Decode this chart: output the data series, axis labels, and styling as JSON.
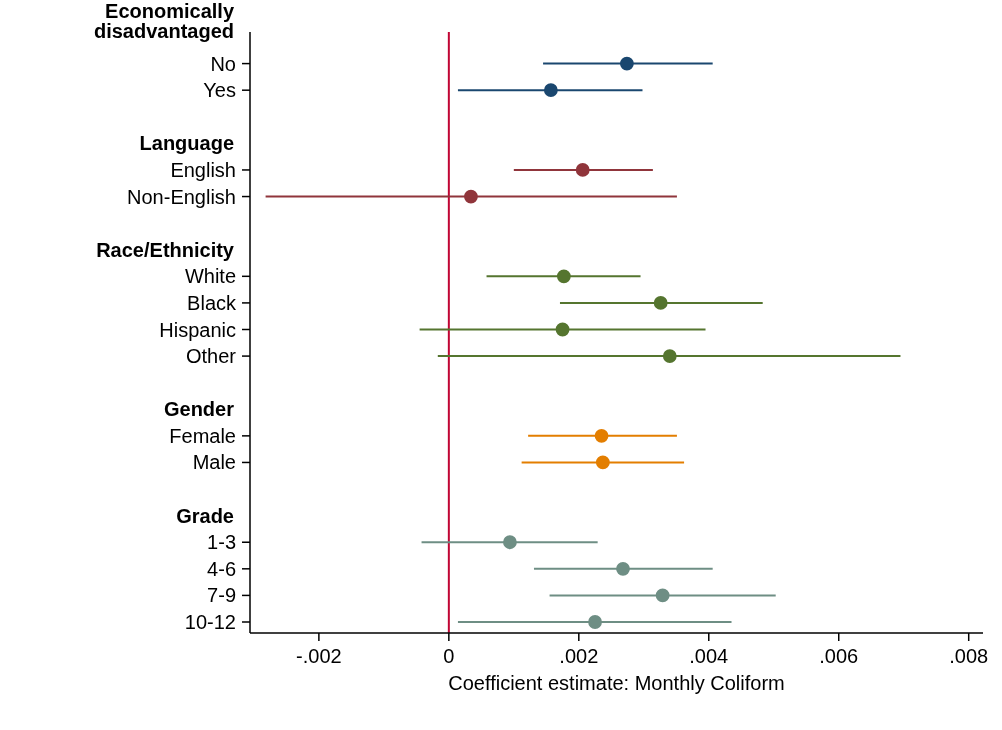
{
  "chart_data": {
    "type": "scatter",
    "orientation": "horizontal",
    "marker": "circle",
    "categories": [
      "Economically disadvantaged",
      "No",
      "Yes",
      null,
      "Language",
      "English",
      "Non-English",
      null,
      "Race/Ethnicity",
      "White",
      "Black",
      "Hispanic",
      "Other",
      null,
      "Gender",
      "Female",
      "Male",
      null,
      "Grade",
      "1-3",
      "4-6",
      "7-9",
      "10-12"
    ],
    "series": [
      {
        "color": "#1a476f",
        "values": [
          null,
          0.00274,
          0.00157,
          null,
          null,
          null,
          null,
          null,
          null,
          null,
          null,
          null,
          null,
          null,
          null,
          null,
          null,
          null,
          null,
          null,
          null,
          null,
          null
        ],
        "errors": [
          null,
          [
            0.00145,
            0.00406
          ],
          [
            0.00014,
            0.00298
          ],
          null,
          null,
          null,
          null,
          null,
          null,
          null,
          null,
          null,
          null,
          null,
          null,
          null,
          null,
          null,
          null,
          null,
          null,
          null,
          null
        ]
      },
      {
        "color": "#90353b",
        "values": [
          null,
          null,
          null,
          null,
          null,
          0.00206,
          0.00034,
          null,
          null,
          null,
          null,
          null,
          null,
          null,
          null,
          null,
          null,
          null,
          null,
          null,
          null,
          null,
          null
        ],
        "errors": [
          null,
          null,
          null,
          null,
          null,
          [
            0.001,
            0.00314
          ],
          [
            -0.00282,
            0.00351
          ],
          null,
          null,
          null,
          null,
          null,
          null,
          null,
          null,
          null,
          null,
          null,
          null,
          null,
          null,
          null,
          null
        ]
      },
      {
        "color": "#55752f",
        "values": [
          null,
          null,
          null,
          null,
          null,
          null,
          null,
          null,
          null,
          0.00177,
          0.00326,
          0.00175,
          0.0034,
          null,
          null,
          null,
          null,
          null,
          null,
          null,
          null,
          null,
          null
        ],
        "errors": [
          null,
          null,
          null,
          null,
          null,
          null,
          null,
          null,
          null,
          [
            0.00058,
            0.00295
          ],
          [
            0.00171,
            0.00483
          ],
          [
            -0.00045,
            0.00395
          ],
          [
            -0.00017,
            0.00695
          ],
          null,
          null,
          null,
          null,
          null,
          null,
          null,
          null,
          null,
          null
        ]
      },
      {
        "color": "#e37e00",
        "values": [
          null,
          null,
          null,
          null,
          null,
          null,
          null,
          null,
          null,
          null,
          null,
          null,
          null,
          null,
          null,
          0.00235,
          0.00237,
          null,
          null,
          null,
          null,
          null,
          null
        ],
        "errors": [
          null,
          null,
          null,
          null,
          null,
          null,
          null,
          null,
          null,
          null,
          null,
          null,
          null,
          null,
          null,
          [
            0.00122,
            0.00351
          ],
          [
            0.00112,
            0.00362
          ],
          null,
          null,
          null,
          null,
          null,
          null
        ]
      },
      {
        "color": "#6e8e84",
        "values": [
          null,
          null,
          null,
          null,
          null,
          null,
          null,
          null,
          null,
          null,
          null,
          null,
          null,
          null,
          null,
          null,
          null,
          null,
          null,
          0.00094,
          0.00268,
          0.00329,
          0.00225
        ],
        "errors": [
          null,
          null,
          null,
          null,
          null,
          null,
          null,
          null,
          null,
          null,
          null,
          null,
          null,
          null,
          null,
          null,
          null,
          null,
          null,
          [
            -0.00042,
            0.00229
          ],
          [
            0.00131,
            0.00406
          ],
          [
            0.00155,
            0.00503
          ],
          [
            0.00014,
            0.00435
          ]
        ]
      }
    ],
    "xlim": [
      -0.00306,
      0.00822
    ],
    "xticks": [
      {
        "value": -0.002,
        "label": "-.002"
      },
      0,
      {
        "value": 0.002,
        "label": ".002"
      },
      {
        "value": 0.004,
        "label": ".004"
      },
      {
        "value": 0.006,
        "label": ".006"
      },
      {
        "value": 0.008,
        "label": ".008"
      }
    ],
    "xlabel": "Coefficient estimate: Monthly Coliform",
    "ref_lines": [
      {
        "axis": "x",
        "value": 0,
        "color": "#c10534"
      }
    ],
    "grid": false
  }
}
